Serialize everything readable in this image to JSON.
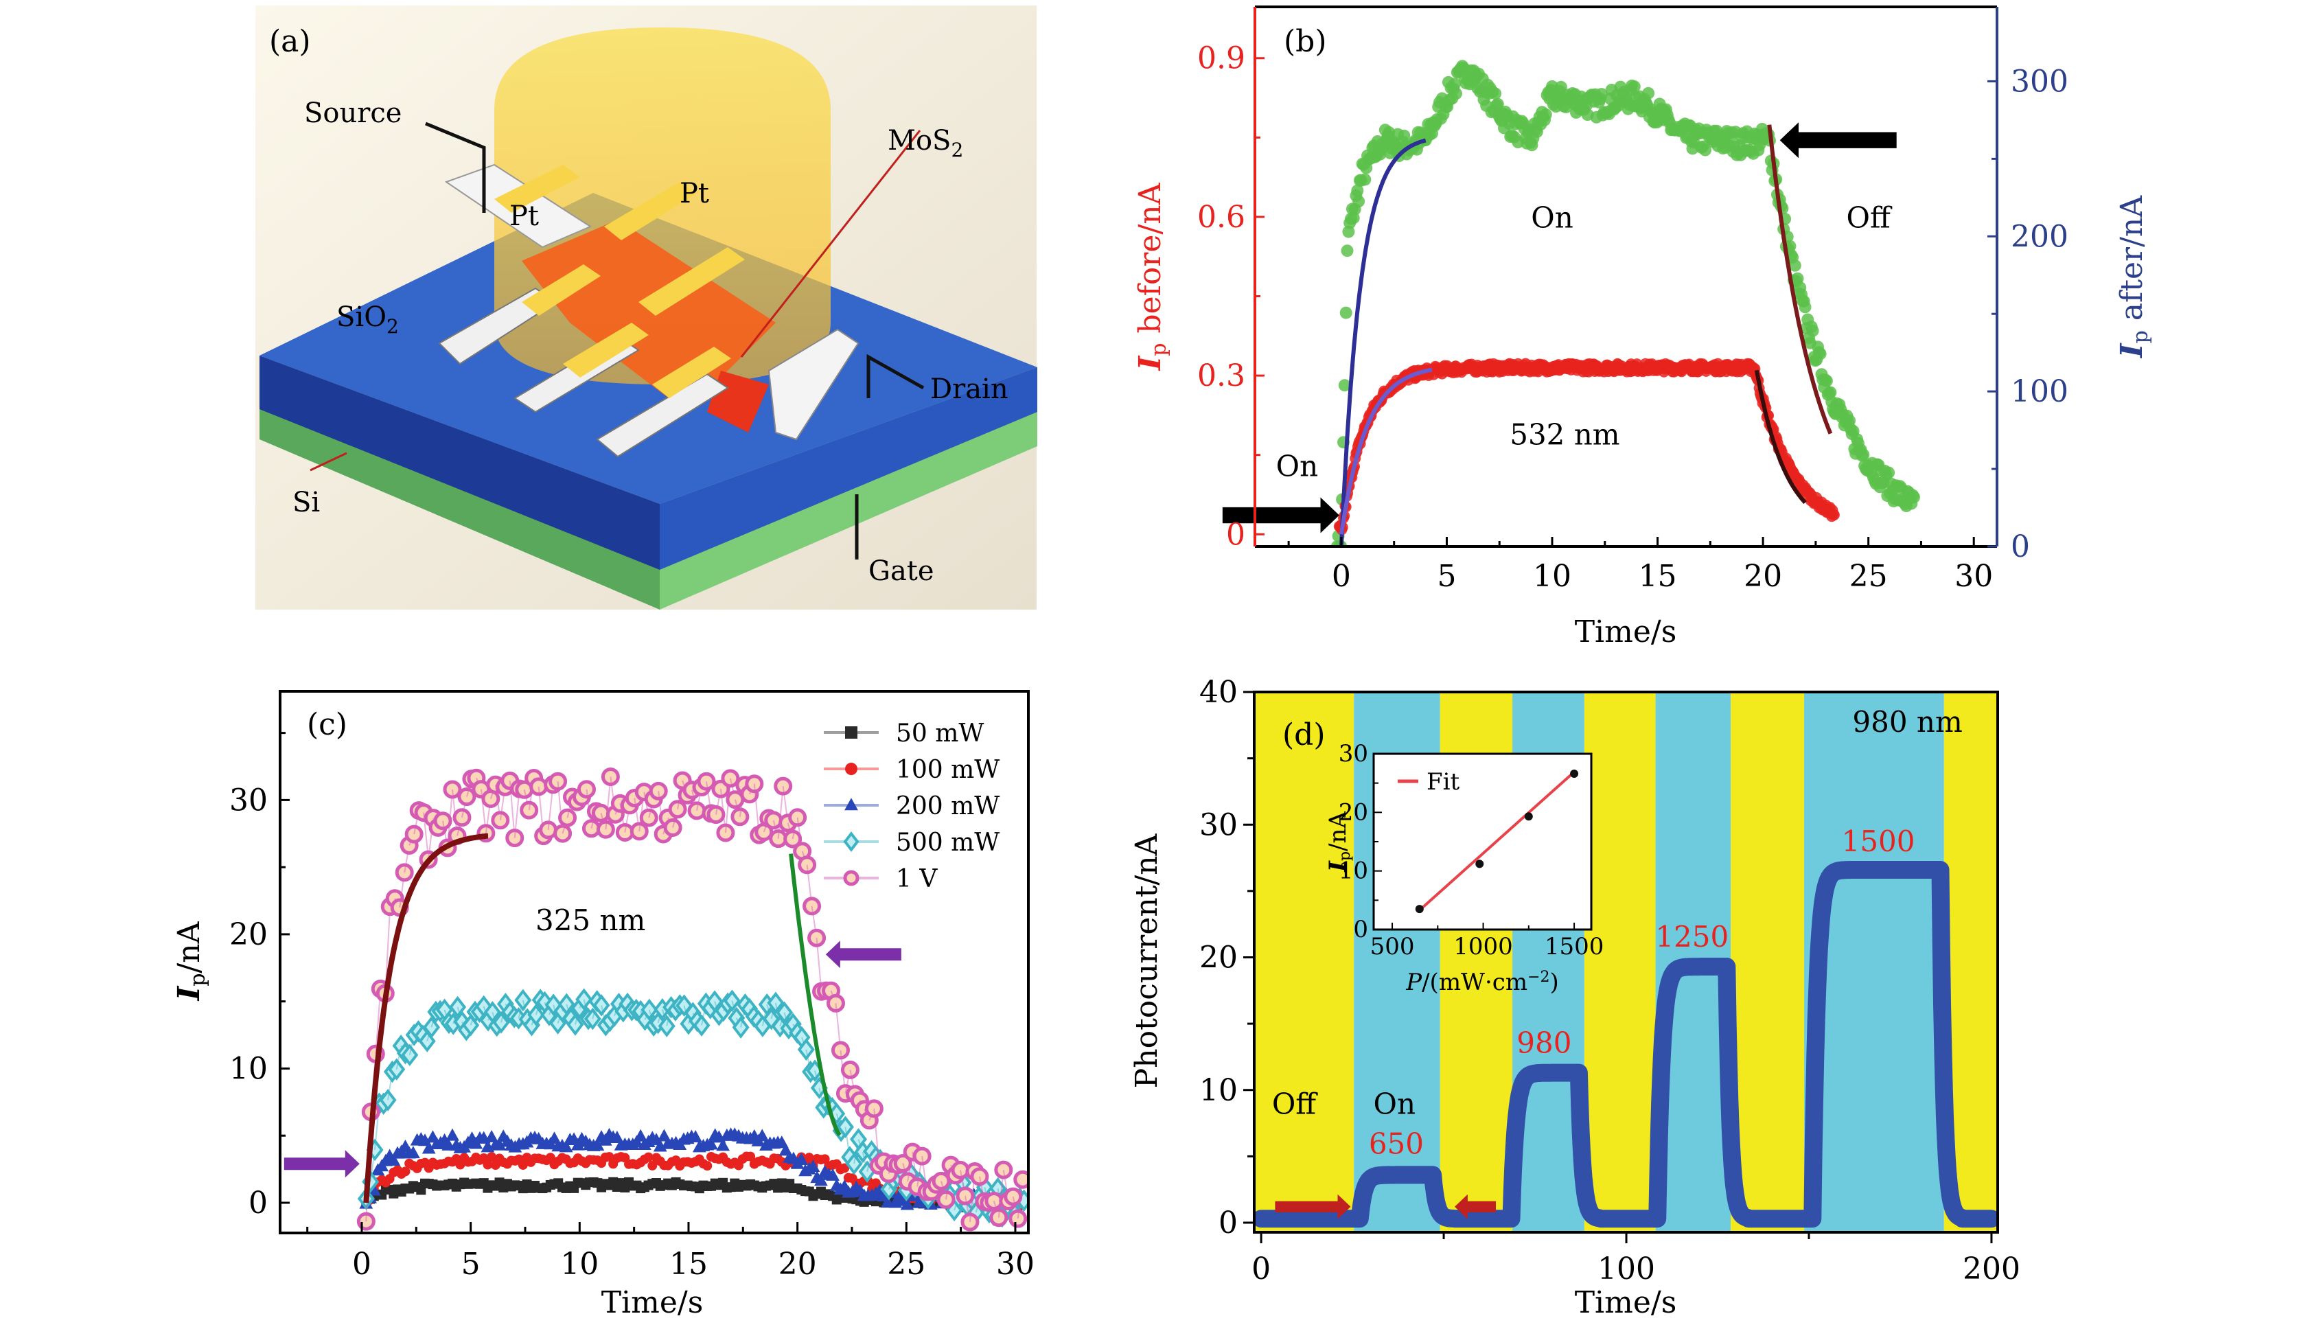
{
  "figure": {
    "panels": [
      "(a)",
      "(b)",
      "(c)",
      "(d)"
    ]
  },
  "diagram": {
    "label": "(a)",
    "labels": {
      "source": "Source",
      "drain": "Drain",
      "gate": "Gate",
      "mos2_main": "MoS",
      "mos2_sub": "2",
      "sio2_main": "SiO",
      "sio2_sub": "2",
      "si": "Si",
      "pt1": "Pt",
      "pt2": "Pt"
    },
    "colors": {
      "background": "#f7f1e3",
      "sio2": "#2f63c4",
      "sio2_side": "#1d3f9a",
      "si": "#6ebf6b",
      "light_beam": "#f6c83a",
      "mos2": "#f2641e",
      "pt": "#f8d44a",
      "electrode": "#f4f4f4"
    }
  },
  "chart_data": [
    {
      "id": "b",
      "type": "scatter",
      "panel_label": "(b)",
      "title": "",
      "xlabel": "Time/s",
      "ylabel_left": {
        "main": "I",
        "sub": "p",
        "rest": " before/nA"
      },
      "ylabel_right": {
        "main": "I",
        "sub": "p",
        "rest": " after/nA"
      },
      "xlim": [
        -4.1,
        31.1
      ],
      "xticks": [
        0,
        5,
        10,
        15,
        20,
        25,
        30
      ],
      "ylim_left": [
        -0.023,
        0.997
      ],
      "yticks_left": [
        0,
        0.3,
        0.6,
        0.9
      ],
      "ylim_right": [
        0,
        348
      ],
      "yticks_right": [
        0,
        100,
        200,
        300
      ],
      "colors": {
        "left_axis": "#e8231f",
        "right_axis": "#2c3f8a",
        "before": "#e8231f",
        "after": "#5cc14a",
        "fit_rise": "#2d2f96",
        "fit_decay": "#7a1a1a"
      },
      "series": [
        {
          "name": "Ip before (532 nm)",
          "axis": "left",
          "color": "#e8231f",
          "on_time": 0,
          "off_time": 19.6,
          "end_time": 23.4,
          "plateau": 0.315,
          "rise_tau": 1.1,
          "decay_tau": 1.8,
          "noise": 0.008
        },
        {
          "name": "Ip after (532 nm)",
          "axis": "right",
          "color": "#5cc14a",
          "on_time": 0,
          "off_time": 20.3,
          "end_time": 27.2,
          "levels": [
            [
              0.3,
              200
            ],
            [
              1,
              240
            ],
            [
              2,
              262
            ],
            [
              3,
              258
            ],
            [
              4,
              262
            ],
            [
              5,
              290
            ],
            [
              6,
              308
            ],
            [
              7,
              290
            ],
            [
              8,
              272
            ],
            [
              9,
              262
            ],
            [
              10,
              290
            ],
            [
              11,
              288
            ],
            [
              12,
              284
            ],
            [
              13,
              288
            ],
            [
              14,
              290
            ],
            [
              15,
              280
            ],
            [
              16,
              266
            ],
            [
              17,
              262
            ],
            [
              18,
              262
            ],
            [
              19,
              260
            ],
            [
              20,
              262
            ]
          ],
          "decay_tau": 3.0,
          "noise": 8
        }
      ],
      "fits": [
        {
          "name": "rise fit after",
          "axis": "right",
          "x": [
            0,
            4
          ],
          "plateau": 265,
          "tau": 0.9,
          "color": "#2d2f96"
        },
        {
          "name": "rise fit before",
          "axis": "left",
          "x": [
            0,
            4.3
          ],
          "plateau": 0.32,
          "tau": 1.2,
          "color": "#6b5bd0"
        },
        {
          "name": "decay fit after",
          "axis": "right",
          "x": [
            20.3,
            23.2
          ],
          "start": 272,
          "tau": 2.2,
          "color": "#7a1a1a"
        },
        {
          "name": "decay fit before",
          "axis": "left",
          "x": [
            19.7,
            22
          ],
          "start": 0.31,
          "tau": 1.4,
          "color": "#3a0d0d"
        }
      ],
      "annotations": [
        {
          "text": "On",
          "x": 10,
          "y_left": 0.58
        },
        {
          "text": "Off",
          "x": 25,
          "y_left": 0.58
        },
        {
          "text": "532 nm",
          "x": 10.6,
          "y_left": 0.17
        },
        {
          "text": "On",
          "x": -2.1,
          "y_left": 0.11
        }
      ],
      "arrows": [
        {
          "direction": "right",
          "x_tip": -0.1,
          "y_left": 0.036,
          "color": "#000000"
        },
        {
          "direction": "left",
          "x_tip": 20.8,
          "y_left": 0.745,
          "color": "#000000"
        }
      ]
    },
    {
      "id": "c",
      "type": "scatter",
      "panel_label": "(c)",
      "xlabel": "Time/s",
      "ylabel": {
        "main": "I",
        "sub": "p",
        "rest": "/nA"
      },
      "xlim": [
        -3.75,
        30.6
      ],
      "xticks": [
        0,
        5,
        10,
        15,
        20,
        25,
        30
      ],
      "ylim": [
        -2.25,
        38.1
      ],
      "yticks": [
        0,
        10,
        20,
        30
      ],
      "series": [
        {
          "name": "50 mW",
          "marker": "square",
          "color": "#2a2a2a",
          "plateau": 1.3,
          "off_time": 19.5,
          "noise": 0.25,
          "step": 0.18
        },
        {
          "name": "100 mW",
          "marker": "circle",
          "color": "#e8231f",
          "dark": "#8a0f0f",
          "plateau": 3.1,
          "off_time": 21.5,
          "noise": 0.35,
          "step": 0.18
        },
        {
          "name": "200 mW",
          "marker": "triangle",
          "color": "#2846b8",
          "plateau": 4.6,
          "off_time": 19.2,
          "noise": 0.5,
          "step": 0.18
        },
        {
          "name": "500 mW",
          "marker": "diamond",
          "color": "#3db3c4",
          "plateau": 14.0,
          "off_time": 19.8,
          "noise": 1.2,
          "step": 0.2
        },
        {
          "name": "1 V",
          "marker": "hexcircle",
          "color": "#d45ab4",
          "plateau": 29.5,
          "off_time": 19.9,
          "noise": 2.4,
          "step": 0.22
        }
      ],
      "fits": [
        {
          "name": "rise fit",
          "x": [
            0.2,
            5.8
          ],
          "plateau": 27.5,
          "tau": 1.1,
          "color": "#7a1010"
        },
        {
          "name": "decay fit",
          "x": [
            19.7,
            22
          ],
          "start": 26,
          "end": 5,
          "color": "#1a8a2a"
        }
      ],
      "annotations": [
        {
          "text": "325 nm",
          "x": 10.5,
          "y": 20.3
        }
      ],
      "arrows": [
        {
          "direction": "right",
          "x_tip": -0.1,
          "y": 2.9,
          "color": "#7b2fa8"
        },
        {
          "direction": "left",
          "x_tip": 21.3,
          "y": 18.5,
          "color": "#7b2fa8"
        }
      ],
      "legend": "top-right"
    },
    {
      "id": "d",
      "type": "line",
      "panel_label": "(d)",
      "xlabel": "Time/s",
      "ylabel": "Photocurrent/nA",
      "xlim": [
        -1.9,
        201.7
      ],
      "xticks": [
        0,
        100,
        200
      ],
      "ylim": [
        -1.0,
        40
      ],
      "yticks": [
        0,
        10,
        20,
        30,
        40
      ],
      "band_colors": {
        "off": "#f2ea1c",
        "on": "#6dcbdd"
      },
      "bands": [
        {
          "state": "off",
          "x": [
            -1.9,
            25.4
          ]
        },
        {
          "state": "on",
          "x": [
            25.4,
            49
          ]
        },
        {
          "state": "off",
          "x": [
            49,
            68.8
          ]
        },
        {
          "state": "on",
          "x": [
            68.8,
            88.5
          ]
        },
        {
          "state": "off",
          "x": [
            88.5,
            108
          ]
        },
        {
          "state": "on",
          "x": [
            108,
            128.6
          ]
        },
        {
          "state": "off",
          "x": [
            128.6,
            148.7
          ]
        },
        {
          "state": "on",
          "x": [
            148.7,
            187
          ]
        },
        {
          "state": "off",
          "x": [
            187,
            201.7
          ]
        }
      ],
      "trace_color": "#3350a8",
      "baseline": 0.3,
      "pulses": [
        {
          "power": "650",
          "on": 27,
          "off": 47,
          "level": 3.6
        },
        {
          "power": "980",
          "on": 68.5,
          "off": 87,
          "level": 11.3
        },
        {
          "power": "1250",
          "on": 108.5,
          "off": 127.5,
          "level": 19.3
        },
        {
          "power": "1500",
          "on": 151,
          "off": 186,
          "level": 26.6
        }
      ],
      "end_time": 200,
      "annotations": [
        {
          "text": "980 nm",
          "x": 177,
          "y": 37
        },
        {
          "text": "Off",
          "x": 9,
          "y": 8.2
        },
        {
          "text": "On",
          "x": 36.5,
          "y": 8.2
        }
      ],
      "power_labels": [
        {
          "text": "650",
          "x": 37,
          "y": 5.2,
          "color": "#e8231f"
        },
        {
          "text": "980",
          "x": 77.5,
          "y": 12.8,
          "color": "#e8231f"
        },
        {
          "text": "1250",
          "x": 118,
          "y": 20.8,
          "color": "#e8231f"
        },
        {
          "text": "1500",
          "x": 169,
          "y": 28.0,
          "color": "#e8231f"
        }
      ],
      "arrows": [
        {
          "direction": "right",
          "x_tip": 24.5,
          "y": 1.2,
          "color": "#c0201e"
        },
        {
          "direction": "left",
          "x_tip": 53,
          "y": 1.2,
          "color": "#c0201e"
        }
      ],
      "inset": {
        "type": "scatter",
        "xlabel": {
          "main": "P",
          "rest": "/(mW·cm",
          "sup": "−2",
          "close": ")"
        },
        "ylabel": {
          "main": "I",
          "sub": "p",
          "rest": "/nA"
        },
        "xlim": [
          398,
          1594
        ],
        "xticks": [
          500,
          1000,
          1500
        ],
        "ylim": [
          0,
          30
        ],
        "yticks": [
          0,
          10,
          20,
          30
        ],
        "points": [
          {
            "x": 650,
            "y": 3.5
          },
          {
            "x": 980,
            "y": 11.2
          },
          {
            "x": 1250,
            "y": 19.3
          },
          {
            "x": 1500,
            "y": 26.6
          }
        ],
        "fit": {
          "label": "Fit",
          "x": [
            650,
            1500
          ],
          "y": [
            3.3,
            26.9
          ],
          "color": "#e8434a"
        }
      }
    }
  ]
}
